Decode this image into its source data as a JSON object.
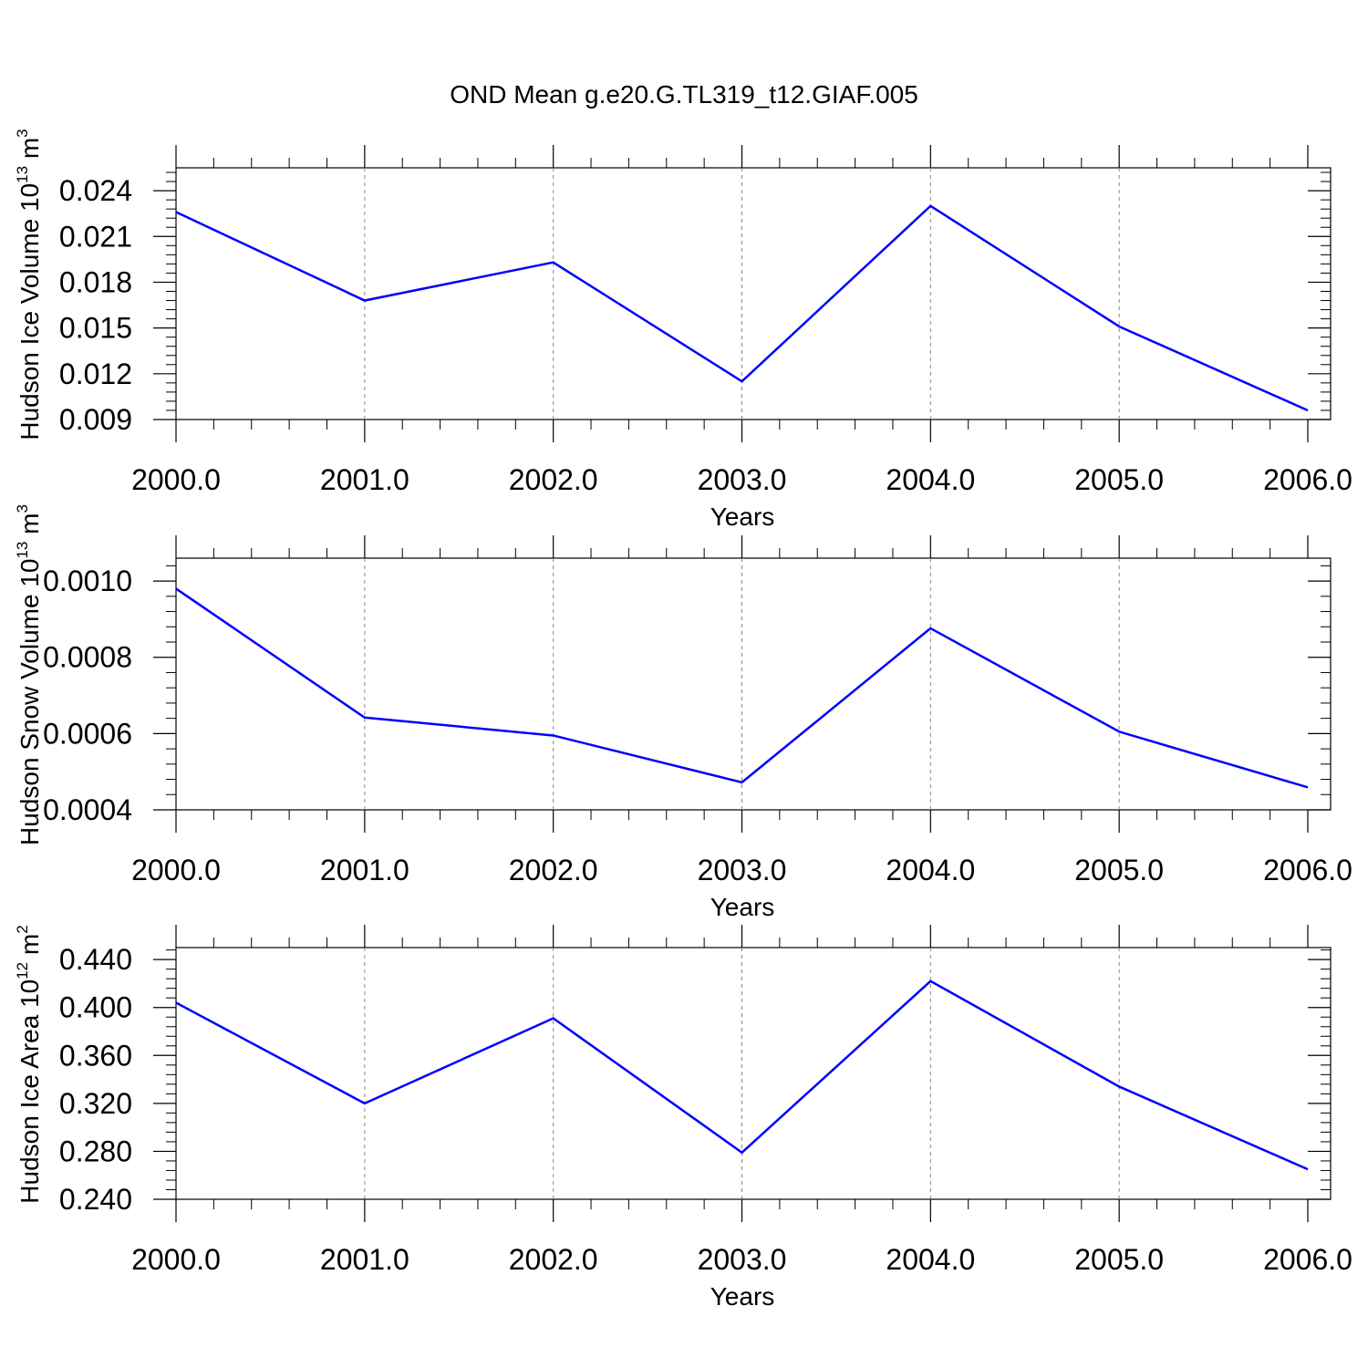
{
  "figure": {
    "title": "OND Mean g.e20.G.TL319_t12.GIAF.005"
  },
  "chart_data": [
    {
      "type": "line",
      "title": "",
      "xlabel": "Years",
      "ylabel": "Hudson Ice Volume 10",
      "ylabel_exp": "13",
      "ylabel_unit": "m",
      "ylabel_unit_exp": "3",
      "xlim": [
        2000,
        2006
      ],
      "ylim": [
        0.009,
        0.0255
      ],
      "x": [
        2000,
        2001,
        2002,
        2003,
        2004,
        2005,
        2006
      ],
      "xticks": [
        2000,
        2001,
        2002,
        2003,
        2004,
        2005,
        2006
      ],
      "xtick_labels": [
        "2000.0",
        "2001.0",
        "2002.0",
        "2003.0",
        "2004.0",
        "2005.0",
        "2006.0"
      ],
      "yticks": [
        0.009,
        0.012,
        0.015,
        0.018,
        0.021,
        0.024
      ],
      "ytick_labels": [
        "0.009",
        "0.012",
        "0.015",
        "0.018",
        "0.021",
        "0.024"
      ],
      "grid": "vertical dashed",
      "series": [
        {
          "color": "#0000ff",
          "values": [
            0.0226,
            0.0168,
            0.0193,
            0.0115,
            0.023,
            0.0151,
            0.0096
          ]
        }
      ]
    },
    {
      "type": "line",
      "title": "",
      "xlabel": "Years",
      "ylabel": "Hudson Snow Volume 10",
      "ylabel_exp": "13",
      "ylabel_unit": "m",
      "ylabel_unit_exp": "3",
      "xlim": [
        2000,
        2006
      ],
      "ylim": [
        0.0004,
        0.00106
      ],
      "x": [
        2000,
        2001,
        2002,
        2003,
        2004,
        2005,
        2006
      ],
      "xticks": [
        2000,
        2001,
        2002,
        2003,
        2004,
        2005,
        2006
      ],
      "xtick_labels": [
        "2000.0",
        "2001.0",
        "2002.0",
        "2003.0",
        "2004.0",
        "2005.0",
        "2006.0"
      ],
      "yticks": [
        0.0004,
        0.0006,
        0.0008,
        0.001
      ],
      "ytick_labels": [
        "0.0004",
        "0.0006",
        "0.0008",
        "0.0010"
      ],
      "grid": "vertical dashed",
      "series": [
        {
          "color": "#0000ff",
          "values": [
            0.00098,
            0.000642,
            0.000595,
            0.000472,
            0.000876,
            0.000605,
            0.000459
          ]
        }
      ]
    },
    {
      "type": "line",
      "title": "",
      "xlabel": "Years",
      "ylabel": "Hudson Ice Area 10",
      "ylabel_exp": "12",
      "ylabel_unit": "m",
      "ylabel_unit_exp": "2",
      "xlim": [
        2000,
        2006
      ],
      "ylim": [
        0.24,
        0.45
      ],
      "x": [
        2000,
        2001,
        2002,
        2003,
        2004,
        2005,
        2006
      ],
      "xticks": [
        2000,
        2001,
        2002,
        2003,
        2004,
        2005,
        2006
      ],
      "xtick_labels": [
        "2000.0",
        "2001.0",
        "2002.0",
        "2003.0",
        "2004.0",
        "2005.0",
        "2006.0"
      ],
      "yticks": [
        0.24,
        0.28,
        0.32,
        0.36,
        0.4,
        0.44
      ],
      "ytick_labels": [
        "0.240",
        "0.280",
        "0.320",
        "0.360",
        "0.400",
        "0.440"
      ],
      "grid": "vertical dashed",
      "series": [
        {
          "color": "#0000ff",
          "values": [
            0.404,
            0.32,
            0.391,
            0.279,
            0.422,
            0.334,
            0.265
          ]
        }
      ]
    }
  ]
}
